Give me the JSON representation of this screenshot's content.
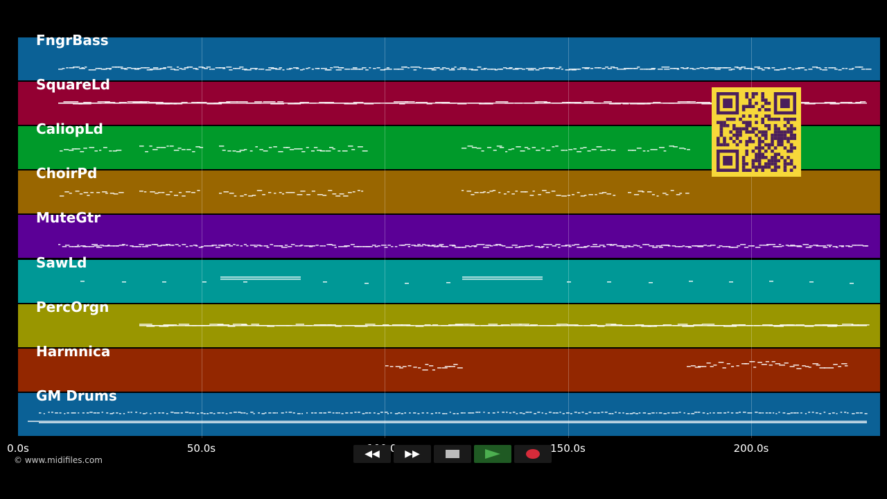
{
  "tracks": [
    {
      "name": "FngrBass",
      "color": "#0b6196",
      "pattern": "dense-mid"
    },
    {
      "name": "SquareLd",
      "color": "#930032",
      "pattern": "sustained"
    },
    {
      "name": "CaliopLd",
      "color": "#009a2a",
      "pattern": "phrases"
    },
    {
      "name": "ChoirPd",
      "color": "#996600",
      "pattern": "phrases"
    },
    {
      "name": "MuteGtr",
      "color": "#5b0096",
      "pattern": "dense-mid"
    },
    {
      "name": "SawLd",
      "color": "#009896",
      "pattern": "sparse"
    },
    {
      "name": "PercOrgn",
      "color": "#999600",
      "pattern": "sustained"
    },
    {
      "name": "Harmnica",
      "color": "#932700",
      "pattern": "late"
    },
    {
      "name": "GM Drums",
      "color": "#0b6196",
      "pattern": "drums"
    }
  ],
  "timeline": {
    "ticks": [
      "0.0s",
      "50.0s",
      "100.0s",
      "150.0s",
      "200.0s"
    ],
    "max_seconds": 235
  },
  "transport": {
    "rewind_label": "◀◀",
    "forward_label": "▶▶",
    "stop_icon": "stop-icon",
    "play_icon": "play-icon",
    "record_icon": "record-icon",
    "play_color": "#4caf50",
    "record_color": "#d62b3a"
  },
  "copyright": "© www.midifiles.com",
  "qr": {
    "fg": "#4a1f5c",
    "bg": "#f7d83a"
  }
}
